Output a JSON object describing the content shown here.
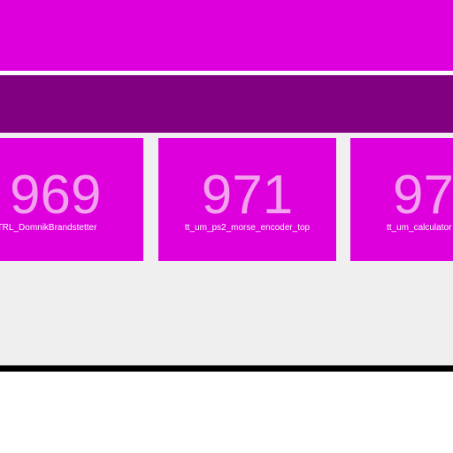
{
  "colors": {
    "accent": "#dd00dd",
    "accent_dark": "#800080",
    "number_text": "#f3a2ee",
    "label_text": "#ffffff",
    "content_bg": "#efefef"
  },
  "cards": [
    {
      "number": "969",
      "label": "n_FanCTRL_DomnikBrandstetter"
    },
    {
      "number": "971",
      "label": "tt_um_ps2_morse_encoder_top"
    },
    {
      "number": "97",
      "label": "tt_um_calculator"
    }
  ]
}
